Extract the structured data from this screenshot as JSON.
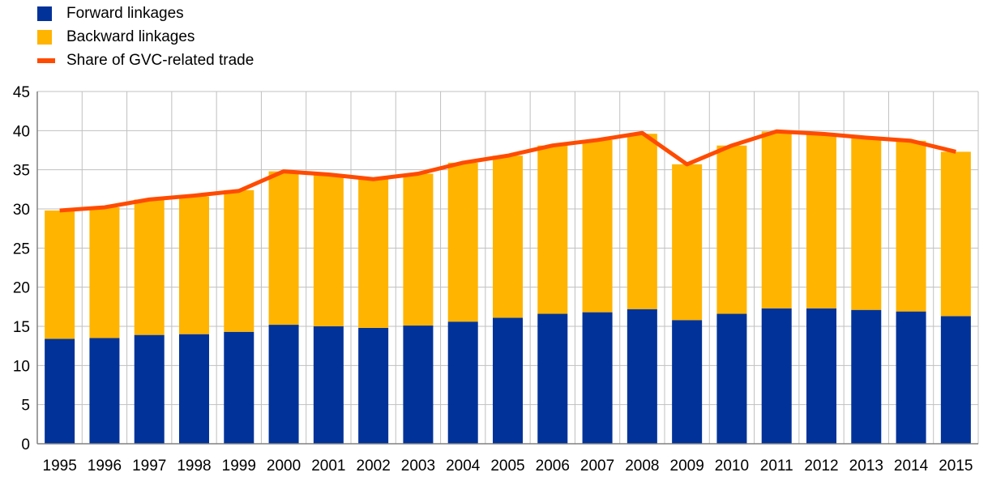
{
  "chart_data": {
    "type": "bar",
    "stacked": true,
    "title": "",
    "xlabel": "",
    "ylabel": "",
    "ylim": [
      0,
      45
    ],
    "yticks": [
      "0",
      "5",
      "10",
      "15",
      "20",
      "25",
      "30",
      "35",
      "40",
      "45"
    ],
    "grid": true,
    "legend_placement": "top-left",
    "categories": [
      "1995",
      "1996",
      "1997",
      "1998",
      "1999",
      "2000",
      "2001",
      "2002",
      "2003",
      "2004",
      "2005",
      "2006",
      "2007",
      "2008",
      "2009",
      "2010",
      "2011",
      "2012",
      "2013",
      "2014",
      "2015"
    ],
    "series": [
      {
        "name": "Forward linkages",
        "kind": "bar",
        "color": "#003299",
        "values": [
          13.4,
          13.5,
          13.9,
          14.0,
          14.3,
          15.2,
          15.0,
          14.8,
          15.1,
          15.6,
          16.1,
          16.6,
          16.8,
          17.2,
          15.8,
          16.6,
          17.3,
          17.3,
          17.1,
          16.9,
          16.3
        ]
      },
      {
        "name": "Backward linkages",
        "kind": "bar",
        "color": "#FFB400",
        "values": [
          16.4,
          16.7,
          17.3,
          17.6,
          18.1,
          19.6,
          19.4,
          19.0,
          19.4,
          20.3,
          20.7,
          21.5,
          22.0,
          22.4,
          19.9,
          21.5,
          22.6,
          22.3,
          22.0,
          21.8,
          21.0
        ]
      },
      {
        "name": "Share of GVC-related trade",
        "kind": "line",
        "color": "#FF4B00",
        "values": [
          29.8,
          30.2,
          31.2,
          31.7,
          32.3,
          34.8,
          34.4,
          33.8,
          34.5,
          35.9,
          36.8,
          38.1,
          38.8,
          39.7,
          35.7,
          38.1,
          39.9,
          39.6,
          39.1,
          38.7,
          37.3
        ]
      }
    ]
  },
  "colors": {
    "grid": "#C0C0C0",
    "axis": "#808080",
    "text": "#000000"
  }
}
